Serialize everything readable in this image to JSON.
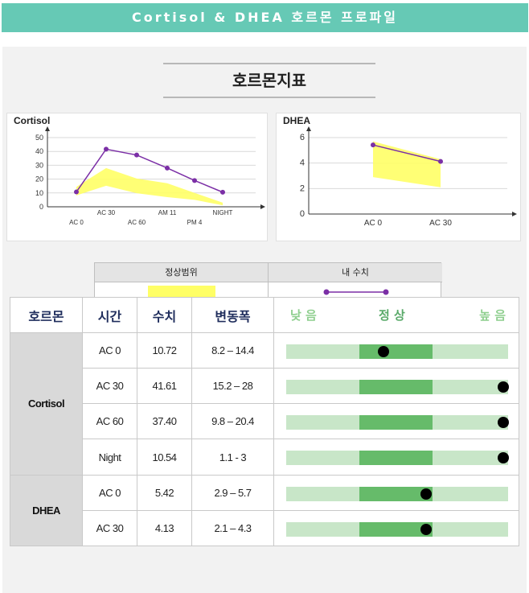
{
  "banner": {
    "title": "Cortisol & DHEA 호르몬 프로파일"
  },
  "section": {
    "title": "호르몬지표"
  },
  "chart_data": [
    {
      "type": "line",
      "title": "Cortisol",
      "categories": [
        "AC 0",
        "AC 30",
        "AC 60",
        "AM 11",
        "PM 4",
        "NIGHT"
      ],
      "series": [
        {
          "name": "내 수치",
          "values": [
            10.72,
            41.61,
            37.4,
            28,
            19,
            10.54
          ]
        }
      ],
      "normal_range": {
        "name": "정상범위",
        "low": [
          8.2,
          15.2,
          9.8,
          7,
          5,
          1.1
        ],
        "high": [
          14.4,
          28,
          20.4,
          17,
          10,
          3
        ]
      },
      "yticks": [
        "0",
        "10",
        "20",
        "30",
        "40",
        "50"
      ],
      "ylim": [
        0,
        50
      ],
      "grid": true
    },
    {
      "type": "line",
      "title": "DHEA",
      "categories": [
        "AC 0",
        "AC 30"
      ],
      "series": [
        {
          "name": "내 수치",
          "values": [
            5.42,
            4.13
          ]
        }
      ],
      "normal_range": {
        "name": "정상범위",
        "low": [
          2.9,
          2.1
        ],
        "high": [
          5.7,
          4.3
        ]
      },
      "yticks": [
        "0",
        "2",
        "4",
        "6"
      ],
      "ylim": [
        0,
        6
      ],
      "grid": true
    }
  ],
  "legend": {
    "range_label": "정상범위",
    "mine_label": "내 수치",
    "range_color": "#ffff66",
    "line_color": "#7b2fa6"
  },
  "table": {
    "headers": {
      "hormone": "호르몬",
      "time": "시간",
      "value": "수치",
      "range": "변동폭",
      "low": "낮 음",
      "normal": "정 상",
      "high": "높 음"
    },
    "groups": [
      {
        "name": "Cortisol",
        "rows": [
          {
            "time": "AC  0",
            "value": "10.72",
            "range": "8.2 – 14.4",
            "level": 0.44
          },
          {
            "time": "AC 30",
            "value": "41.61",
            "range": "15.2 – 28",
            "level": 0.98
          },
          {
            "time": "AC 60",
            "value": "37.40",
            "range": "9.8 – 20.4",
            "level": 0.98
          },
          {
            "time": "Night",
            "value": "10.54",
            "range": "1.1 - 3",
            "level": 0.98
          }
        ]
      },
      {
        "name": "DHEA",
        "rows": [
          {
            "time": "AC  0",
            "value": "5.42",
            "range": "2.9 – 5.7",
            "level": 0.63
          },
          {
            "time": "AC 30",
            "value": "4.13",
            "range": "2.1 – 4.3",
            "level": 0.63
          }
        ]
      }
    ]
  },
  "colors": {
    "banner": "#66c9b5",
    "gauge_light": "#c8e6c8",
    "gauge_mid": "#66bb6a",
    "header_text": "#1f2d5c",
    "legend_text": "#5aaa6a"
  }
}
